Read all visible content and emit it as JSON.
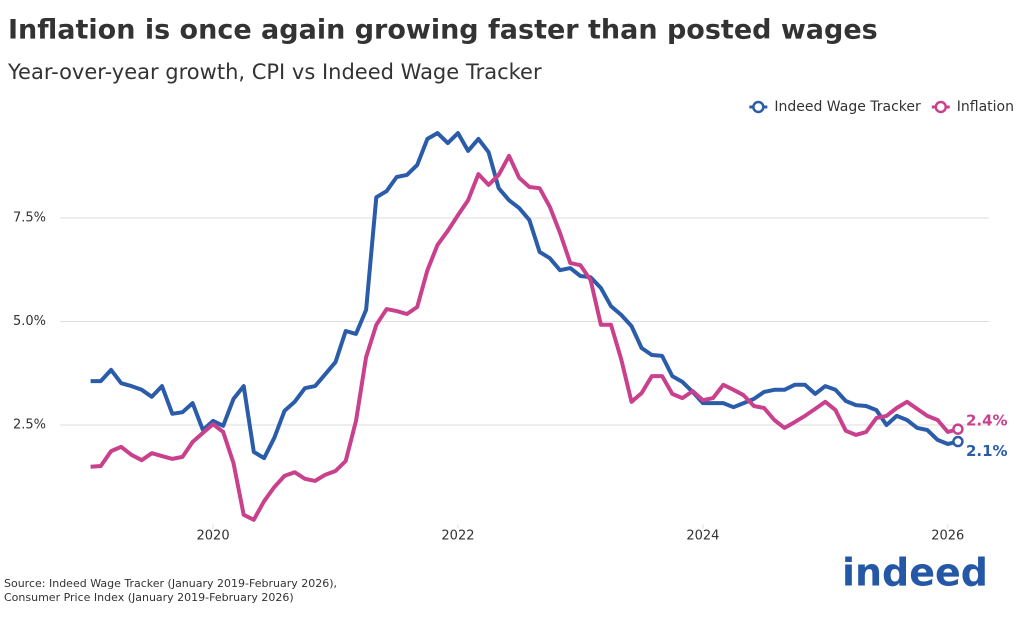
{
  "chart_data": {
    "type": "line",
    "title": "Inflation is once again growing faster than posted wages",
    "subtitle": "Year-over-year growth, CPI vs Indeed Wage Tracker",
    "source": [
      "Source: Indeed Wage Tracker (January 2019-February 2026),",
      "Consumer Price Index (January 2019-February 2026)"
    ],
    "logo": "indeed",
    "legend": "top-right",
    "grid": true,
    "xlim": [
      2018.75,
      2026.5
    ],
    "xticks": [
      2020,
      2022,
      2024,
      2026
    ],
    "ylim": [
      0,
      10
    ],
    "yticks": [
      {
        "value": 2.5,
        "label": "2.5%"
      },
      {
        "value": 5,
        "label": "5.0%"
      },
      {
        "value": 7.5,
        "label": "7.5%"
      }
    ],
    "x": [
      2019,
      2019.083,
      2019.167,
      2019.25,
      2019.333,
      2019.417,
      2019.5,
      2019.583,
      2019.667,
      2019.75,
      2019.833,
      2019.917,
      2020,
      2020.083,
      2020.167,
      2020.25,
      2020.333,
      2020.417,
      2020.5,
      2020.583,
      2020.667,
      2020.75,
      2020.833,
      2020.917,
      2021,
      2021.083,
      2021.167,
      2021.25,
      2021.333,
      2021.417,
      2021.5,
      2021.583,
      2021.667,
      2021.75,
      2021.833,
      2021.917,
      2022,
      2022.083,
      2022.167,
      2022.25,
      2022.333,
      2022.417,
      2022.5,
      2022.583,
      2022.667,
      2022.75,
      2022.833,
      2022.917,
      2023,
      2023.083,
      2023.167,
      2023.25,
      2023.333,
      2023.417,
      2023.5,
      2023.583,
      2023.667,
      2023.75,
      2023.833,
      2023.917,
      2024,
      2024.083,
      2024.167,
      2024.25,
      2024.333,
      2024.417,
      2024.5,
      2024.583,
      2024.667,
      2024.75,
      2024.833,
      2024.917,
      2025,
      2025.083,
      2025.167,
      2025.25,
      2025.333,
      2025.417,
      2025.5,
      2025.583,
      2025.667,
      2025.75,
      2025.833,
      2025.917,
      2026,
      2026.083
    ],
    "series": [
      {
        "name": "Indeed Wage Tracker",
        "color": "#2a5caa",
        "values": [
          3.56,
          3.56,
          3.83,
          3.51,
          3.44,
          3.35,
          3.18,
          3.44,
          2.77,
          2.81,
          3.03,
          2.38,
          2.6,
          2.48,
          3.13,
          3.44,
          1.85,
          1.7,
          2.19,
          2.84,
          3.06,
          3.39,
          3.44,
          3.73,
          4.02,
          4.77,
          4.7,
          5.28,
          8.0,
          8.15,
          8.49,
          8.54,
          8.78,
          9.41,
          9.55,
          9.31,
          9.55,
          9.12,
          9.41,
          9.09,
          8.22,
          7.93,
          7.74,
          7.45,
          6.68,
          6.53,
          6.24,
          6.29,
          6.1,
          6.07,
          5.81,
          5.37,
          5.16,
          4.89,
          4.36,
          4.19,
          4.17,
          3.68,
          3.54,
          3.3,
          3.03,
          3.03,
          3.03,
          2.93,
          3.03,
          3.13,
          3.3,
          3.35,
          3.35,
          3.47,
          3.47,
          3.25,
          3.44,
          3.35,
          3.08,
          2.98,
          2.96,
          2.86,
          2.5,
          2.72,
          2.62,
          2.43,
          2.38,
          2.14,
          2.04,
          2.1
        ],
        "value_labels": [
          null,
          null,
          null,
          null,
          null,
          null,
          null,
          null,
          null,
          null,
          null,
          null,
          null,
          null,
          null,
          null,
          null,
          null,
          null,
          null,
          null,
          null,
          null,
          null,
          null,
          null,
          null,
          null,
          null,
          null,
          null,
          null,
          null,
          null,
          null,
          null,
          null,
          null,
          null,
          null,
          null,
          null,
          null,
          null,
          null,
          null,
          null,
          null,
          null,
          null,
          null,
          null,
          null,
          null,
          null,
          null,
          null,
          null,
          null,
          null,
          null,
          null,
          null,
          null,
          null,
          null,
          null,
          null,
          null,
          null,
          null,
          null,
          null,
          null,
          null,
          null,
          null,
          null,
          null,
          null,
          null,
          null,
          null,
          null,
          null,
          "2.1%"
        ]
      },
      {
        "name": "Inflation",
        "color": "#c9408d",
        "values": [
          1.49,
          1.51,
          1.87,
          1.97,
          1.78,
          1.65,
          1.82,
          1.75,
          1.68,
          1.73,
          2.09,
          2.31,
          2.52,
          2.33,
          1.58,
          0.33,
          0.21,
          0.66,
          1.0,
          1.27,
          1.36,
          1.2,
          1.15,
          1.3,
          1.39,
          1.63,
          2.6,
          4.14,
          4.92,
          5.3,
          5.25,
          5.18,
          5.35,
          6.24,
          6.85,
          7.19,
          7.57,
          7.93,
          8.56,
          8.3,
          8.54,
          9.0,
          8.47,
          8.25,
          8.22,
          7.77,
          7.14,
          6.41,
          6.36,
          6.0,
          4.92,
          4.92,
          4.09,
          3.06,
          3.27,
          3.68,
          3.68,
          3.25,
          3.15,
          3.32,
          3.1,
          3.15,
          3.47,
          3.35,
          3.22,
          2.96,
          2.91,
          2.62,
          2.43,
          2.57,
          2.72,
          2.89,
          3.06,
          2.86,
          2.36,
          2.26,
          2.33,
          2.67,
          2.72,
          2.91,
          3.06,
          2.89,
          2.72,
          2.62,
          2.33,
          2.4
        ],
        "value_labels": [
          null,
          null,
          null,
          null,
          null,
          null,
          null,
          null,
          null,
          null,
          null,
          null,
          null,
          null,
          null,
          null,
          null,
          null,
          null,
          null,
          null,
          null,
          null,
          null,
          null,
          null,
          null,
          null,
          null,
          null,
          null,
          null,
          null,
          null,
          null,
          null,
          null,
          null,
          null,
          null,
          null,
          null,
          null,
          null,
          null,
          null,
          null,
          null,
          null,
          null,
          null,
          null,
          null,
          null,
          null,
          null,
          null,
          null,
          null,
          null,
          null,
          null,
          null,
          null,
          null,
          null,
          null,
          null,
          null,
          null,
          null,
          null,
          null,
          null,
          null,
          null,
          null,
          null,
          null,
          null,
          null,
          null,
          null,
          null,
          null,
          "2.4%"
        ]
      }
    ]
  }
}
